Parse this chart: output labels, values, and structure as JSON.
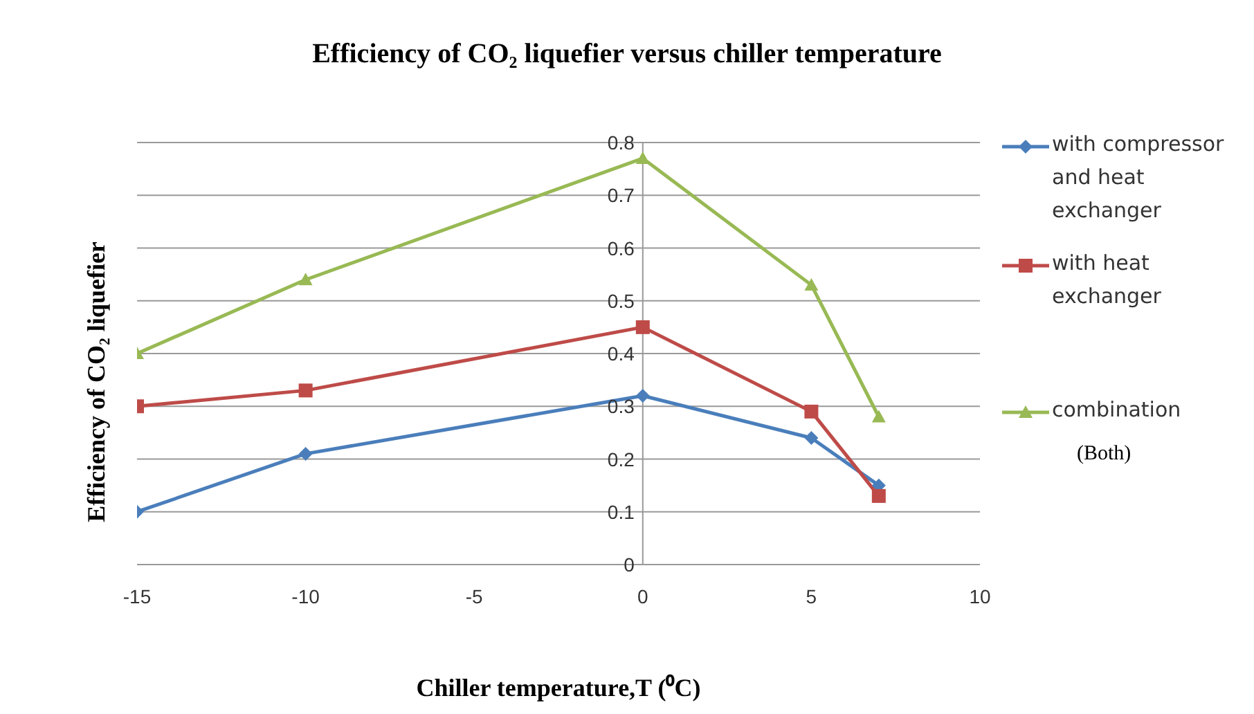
{
  "chart_data": {
    "type": "line",
    "title": "Efficiency of CO₂ liquefier versus chiller temperature",
    "xlabel": "Chiller temperature,T (⁰C)",
    "ylabel": "Efficiency of CO₂ liquefier",
    "x": [
      -15,
      -10,
      0,
      5,
      7
    ],
    "series": [
      {
        "name": "with compressor and heat exchanger",
        "color": "#4a7ebb",
        "marker": "diamond",
        "values": [
          0.1,
          0.21,
          0.32,
          0.24,
          0.15
        ]
      },
      {
        "name": "with heat exchanger",
        "color": "#be4b48",
        "marker": "square",
        "values": [
          0.3,
          0.33,
          0.45,
          0.29,
          0.13
        ]
      },
      {
        "name": "combination",
        "color": "#98b954",
        "marker": "triangle",
        "values": [
          0.4,
          0.54,
          0.77,
          0.53,
          0.28
        ]
      }
    ],
    "xlim": [
      -15,
      10
    ],
    "xticks": [
      -15,
      -10,
      -5,
      0,
      5,
      10
    ],
    "ylim": [
      0,
      0.8
    ],
    "yticks": [
      0,
      0.1,
      0.2,
      0.3,
      0.4,
      0.5,
      0.6,
      0.7,
      0.8
    ],
    "grid": "y",
    "legend": "right",
    "annotations": [
      "(Both)"
    ]
  }
}
